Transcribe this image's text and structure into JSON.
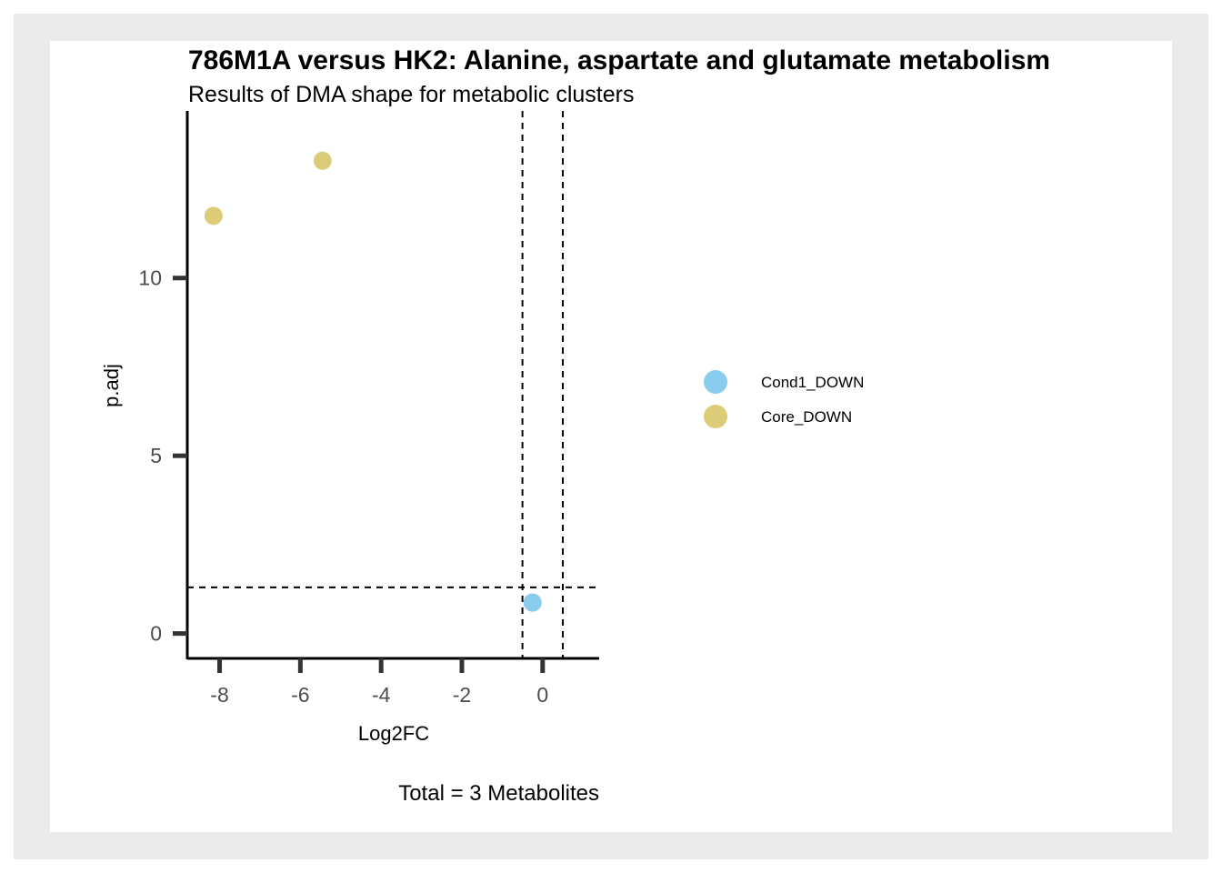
{
  "chart_data": {
    "type": "scatter",
    "title": "786M1A versus HK2: Alanine, aspartate and glutamate metabolism",
    "subtitle": "Results of DMA shape for metabolic clusters",
    "xlabel": "Log2FC",
    "ylabel": "p.adj",
    "caption": "Total = 3 Metabolites",
    "xlim": [
      -8.8,
      1.4
    ],
    "ylim": [
      -0.7,
      14.7
    ],
    "x_ticks": [
      -8,
      -6,
      -4,
      -2,
      0
    ],
    "y_ticks": [
      0,
      5,
      10
    ],
    "thresholds": {
      "x": [
        -0.5,
        0.5
      ],
      "y": [
        1.3
      ]
    },
    "grid": false,
    "legend_position": "right",
    "series": [
      {
        "name": "Cond1_DOWN",
        "color": "#89cced",
        "points": [
          {
            "x": -0.25,
            "y": 0.87
          }
        ]
      },
      {
        "name": "Core_DOWN",
        "color": "#dccb77",
        "points": [
          {
            "x": -8.15,
            "y": 11.75
          },
          {
            "x": -5.45,
            "y": 13.3
          }
        ]
      }
    ]
  }
}
